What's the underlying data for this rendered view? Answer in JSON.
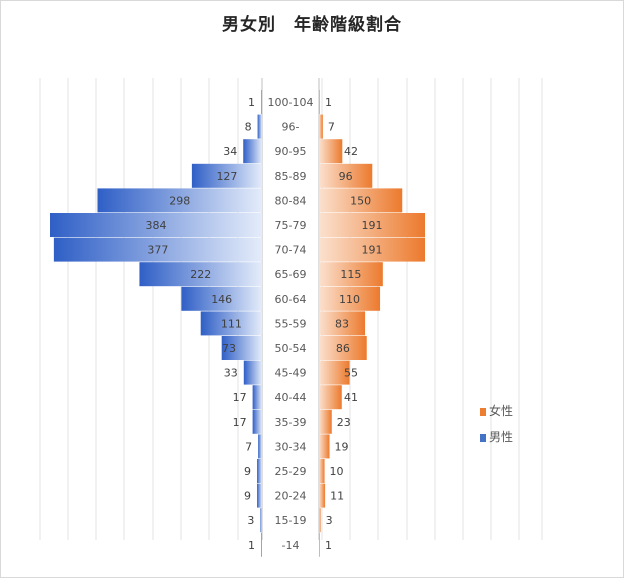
{
  "chart_data": {
    "type": "bar",
    "title": "男女別　年齢階級割合",
    "categories": [
      "100-104",
      "96-",
      "90-95",
      "85-89",
      "80-84",
      "75-79",
      "70-74",
      "65-69",
      "60-64",
      "55-59",
      "50-54",
      "45-49",
      "40-44",
      "35-39",
      "30-34",
      "25-29",
      "20-24",
      "15-19",
      "-14"
    ],
    "series": [
      {
        "name": "男性",
        "color": "#4472c4",
        "values": [
          1,
          8,
          34,
          127,
          298,
          384,
          377,
          222,
          146,
          111,
          73,
          33,
          17,
          17,
          7,
          9,
          9,
          3,
          1
        ]
      },
      {
        "name": "女性",
        "color": "#ed7d31",
        "values": [
          1,
          7,
          42,
          96,
          150,
          191,
          191,
          115,
          110,
          83,
          86,
          55,
          41,
          23,
          19,
          10,
          11,
          3,
          1
        ]
      }
    ],
    "legend": [
      "女性",
      "男性"
    ],
    "legend_position": "right",
    "grid": true
  }
}
